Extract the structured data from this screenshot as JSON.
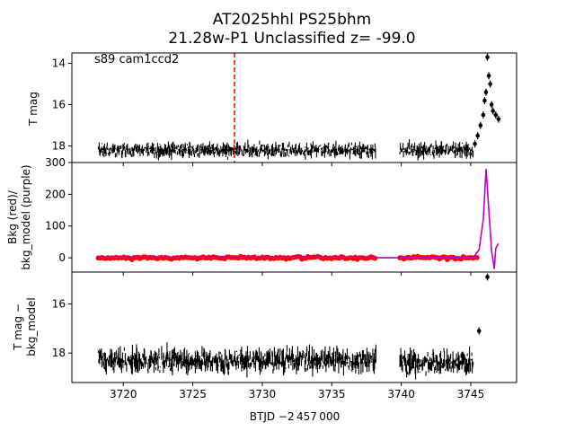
{
  "figure": {
    "title_line1": "AT2025hhl  PS25bhm",
    "title_line2": "21.28w-P1 Unclassified z= -99.0",
    "annotation": "s89 cam1ccd2",
    "xlabel": "BTJD −2 457 000"
  },
  "colors": {
    "lightcurve": "#000000",
    "background": "#ff0000",
    "bkg_model": "#bf00bf",
    "marker_line": "#ff0000"
  },
  "chart_data": [
    {
      "type": "scatter",
      "panel": "top",
      "ylabel": "T mag",
      "y_inverted": true,
      "ylim": [
        18.8,
        13.5
      ],
      "xlim": [
        3716.3,
        3748.3
      ],
      "yticks": [
        14,
        16,
        18
      ],
      "vertical_marker_x": 3728.0,
      "segments": [
        {
          "x_start": 3718.2,
          "x_end": 3738.2,
          "y_median": 18.2,
          "scatter": 0.25
        },
        {
          "x_start": 3739.9,
          "x_end": 3745.2,
          "y_median": 18.2,
          "scatter": 0.25
        }
      ],
      "rise_points": [
        {
          "x": 3745.3,
          "y": 17.9
        },
        {
          "x": 3745.5,
          "y": 17.5
        },
        {
          "x": 3745.7,
          "y": 17.0
        },
        {
          "x": 3745.9,
          "y": 16.5
        },
        {
          "x": 3746.0,
          "y": 15.8
        },
        {
          "x": 3746.1,
          "y": 15.4
        },
        {
          "x": 3746.2,
          "y": 13.7
        },
        {
          "x": 3746.3,
          "y": 14.6
        },
        {
          "x": 3746.4,
          "y": 15.0
        },
        {
          "x": 3746.5,
          "y": 16.0
        },
        {
          "x": 3746.6,
          "y": 16.3
        },
        {
          "x": 3746.8,
          "y": 16.5
        },
        {
          "x": 3747.0,
          "y": 16.7
        }
      ]
    },
    {
      "type": "line",
      "panel": "middle",
      "ylabel_line1": "Bkg (red)/",
      "ylabel_line2": "bkg_model (purple)",
      "ylim": [
        -45,
        300
      ],
      "xlim": [
        3716.3,
        3748.3
      ],
      "yticks": [
        0,
        100,
        200,
        300
      ],
      "series": [
        {
          "name": "Bkg",
          "baseline": 0,
          "segments": [
            [
              3718.2,
              3738.2
            ],
            [
              3739.9,
              3745.5
            ]
          ]
        },
        {
          "name": "bkg_model",
          "baseline": 0,
          "points": [
            {
              "x": 3738.2,
              "y": 0
            },
            {
              "x": 3739.9,
              "y": 0
            },
            {
              "x": 3745.2,
              "y": 2
            },
            {
              "x": 3745.6,
              "y": 25
            },
            {
              "x": 3745.9,
              "y": 120
            },
            {
              "x": 3746.1,
              "y": 280
            },
            {
              "x": 3746.3,
              "y": 150
            },
            {
              "x": 3746.5,
              "y": 20
            },
            {
              "x": 3746.7,
              "y": -35
            },
            {
              "x": 3746.8,
              "y": 30
            },
            {
              "x": 3747.0,
              "y": 45
            }
          ]
        }
      ]
    },
    {
      "type": "scatter",
      "panel": "bottom",
      "ylabel_line1": "T mag −",
      "ylabel_line2": "bkg_model",
      "y_inverted": true,
      "ylim": [
        19.2,
        14.7
      ],
      "xlim": [
        3716.3,
        3748.3
      ],
      "yticks": [
        16,
        18
      ],
      "segments": [
        {
          "x_start": 3718.2,
          "x_end": 3738.2,
          "y_median": 18.3,
          "scatter": 0.35
        },
        {
          "x_start": 3739.9,
          "x_end": 3745.2,
          "y_median": 18.4,
          "scatter": 0.35
        }
      ],
      "extra_points": [
        {
          "x": 3745.6,
          "y": 17.1
        },
        {
          "x": 3746.2,
          "y": 14.9
        }
      ]
    }
  ],
  "xaxis": {
    "ticks": [
      3720,
      3725,
      3730,
      3735,
      3740,
      3745
    ],
    "tick_labels": [
      "3720",
      "3725",
      "3730",
      "3735",
      "3740",
      "3745"
    ]
  }
}
